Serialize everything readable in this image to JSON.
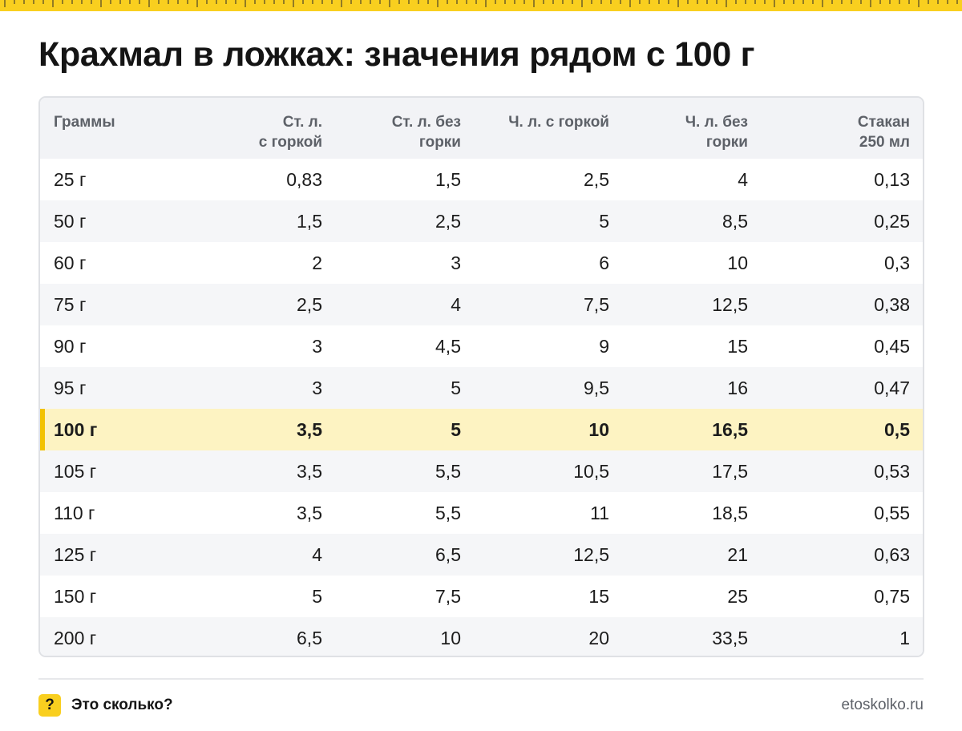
{
  "title": "Крахмал в ложках: значения рядом с 100 г",
  "columns": [
    "Граммы",
    "Ст. л.\nс горкой",
    "Ст. л. без\nгорки",
    "Ч. л. с горкой",
    "Ч. л. без\nгорки",
    "Стакан\n250 мл"
  ],
  "rows": [
    [
      "25 г",
      "0,83",
      "1,5",
      "2,5",
      "4",
      "0,13"
    ],
    [
      "50 г",
      "1,5",
      "2,5",
      "5",
      "8,5",
      "0,25"
    ],
    [
      "60 г",
      "2",
      "3",
      "6",
      "10",
      "0,3"
    ],
    [
      "75 г",
      "2,5",
      "4",
      "7,5",
      "12,5",
      "0,38"
    ],
    [
      "90 г",
      "3",
      "4,5",
      "9",
      "15",
      "0,45"
    ],
    [
      "95 г",
      "3",
      "5",
      "9,5",
      "16",
      "0,47"
    ],
    [
      "100 г",
      "3,5",
      "5",
      "10",
      "16,5",
      "0,5"
    ],
    [
      "105 г",
      "3,5",
      "5,5",
      "10,5",
      "17,5",
      "0,53"
    ],
    [
      "110 г",
      "3,5",
      "5,5",
      "11",
      "18,5",
      "0,55"
    ],
    [
      "125 г",
      "4",
      "6,5",
      "12,5",
      "21",
      "0,63"
    ],
    [
      "150 г",
      "5",
      "7,5",
      "15",
      "25",
      "0,75"
    ],
    [
      "200 г",
      "6,5",
      "10",
      "20",
      "33,5",
      "1"
    ]
  ],
  "highlighted_row": "100 г",
  "footer": {
    "badge": "?",
    "brand": "Это сколько?",
    "site": "etoskolko.ru"
  },
  "colors": {
    "accent": "#f9cf1f",
    "highlight_row": "#fdf3c2",
    "header_bg": "#f2f3f6",
    "stripe": "#f5f6f8"
  }
}
